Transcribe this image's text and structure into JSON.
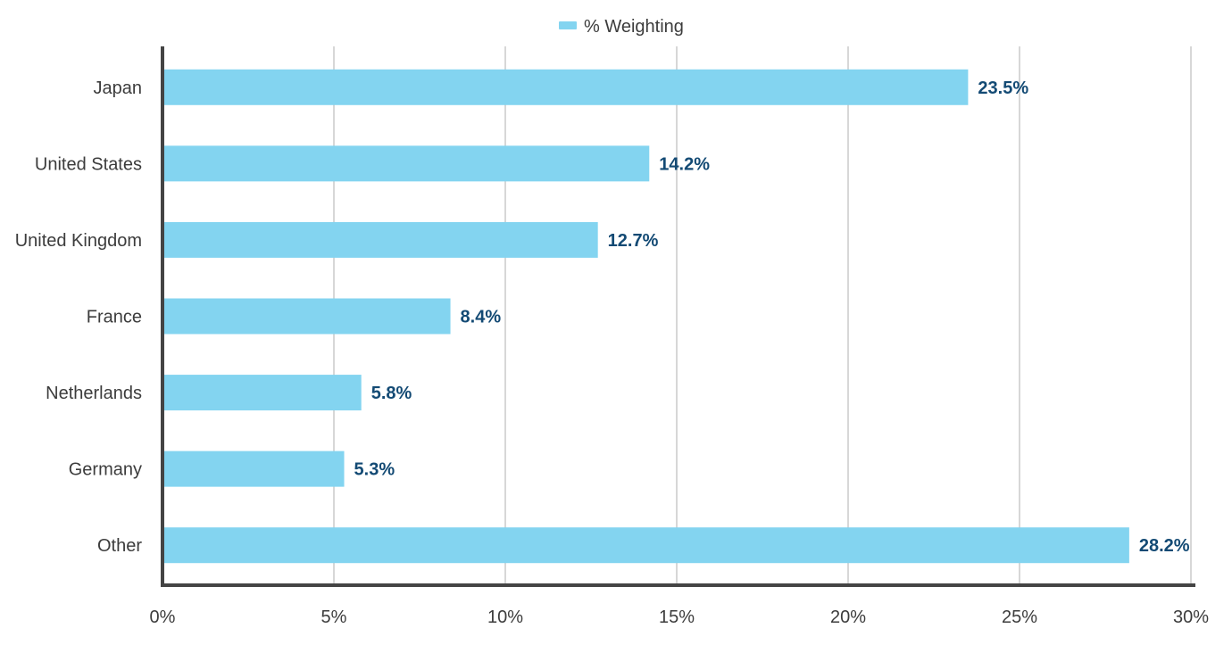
{
  "colors": {
    "bar": "#83d4f0",
    "data_label": "#134a74",
    "text": "#3c3c3c",
    "grid": "#d7d7d7",
    "axis": "#444444"
  },
  "chart_data": {
    "type": "bar",
    "orientation": "horizontal",
    "categories": [
      "Japan",
      "United States",
      "United Kingdom",
      "France",
      "Netherlands",
      "Germany",
      "Other"
    ],
    "series": [
      {
        "name": "% Weighting",
        "values": [
          23.5,
          14.2,
          12.7,
          8.4,
          5.8,
          5.3,
          28.2
        ]
      }
    ],
    "data_labels": [
      "23.5%",
      "14.2%",
      "12.7%",
      "8.4%",
      "5.8%",
      "5.3%",
      "28.2%"
    ],
    "xlim": [
      0,
      30
    ],
    "x_ticks": [
      0,
      5,
      10,
      15,
      20,
      25,
      30
    ],
    "x_tick_labels": [
      "0%",
      "5%",
      "10%",
      "15%",
      "20%",
      "25%",
      "30%"
    ],
    "grid": true,
    "legend_position": "top-center"
  }
}
